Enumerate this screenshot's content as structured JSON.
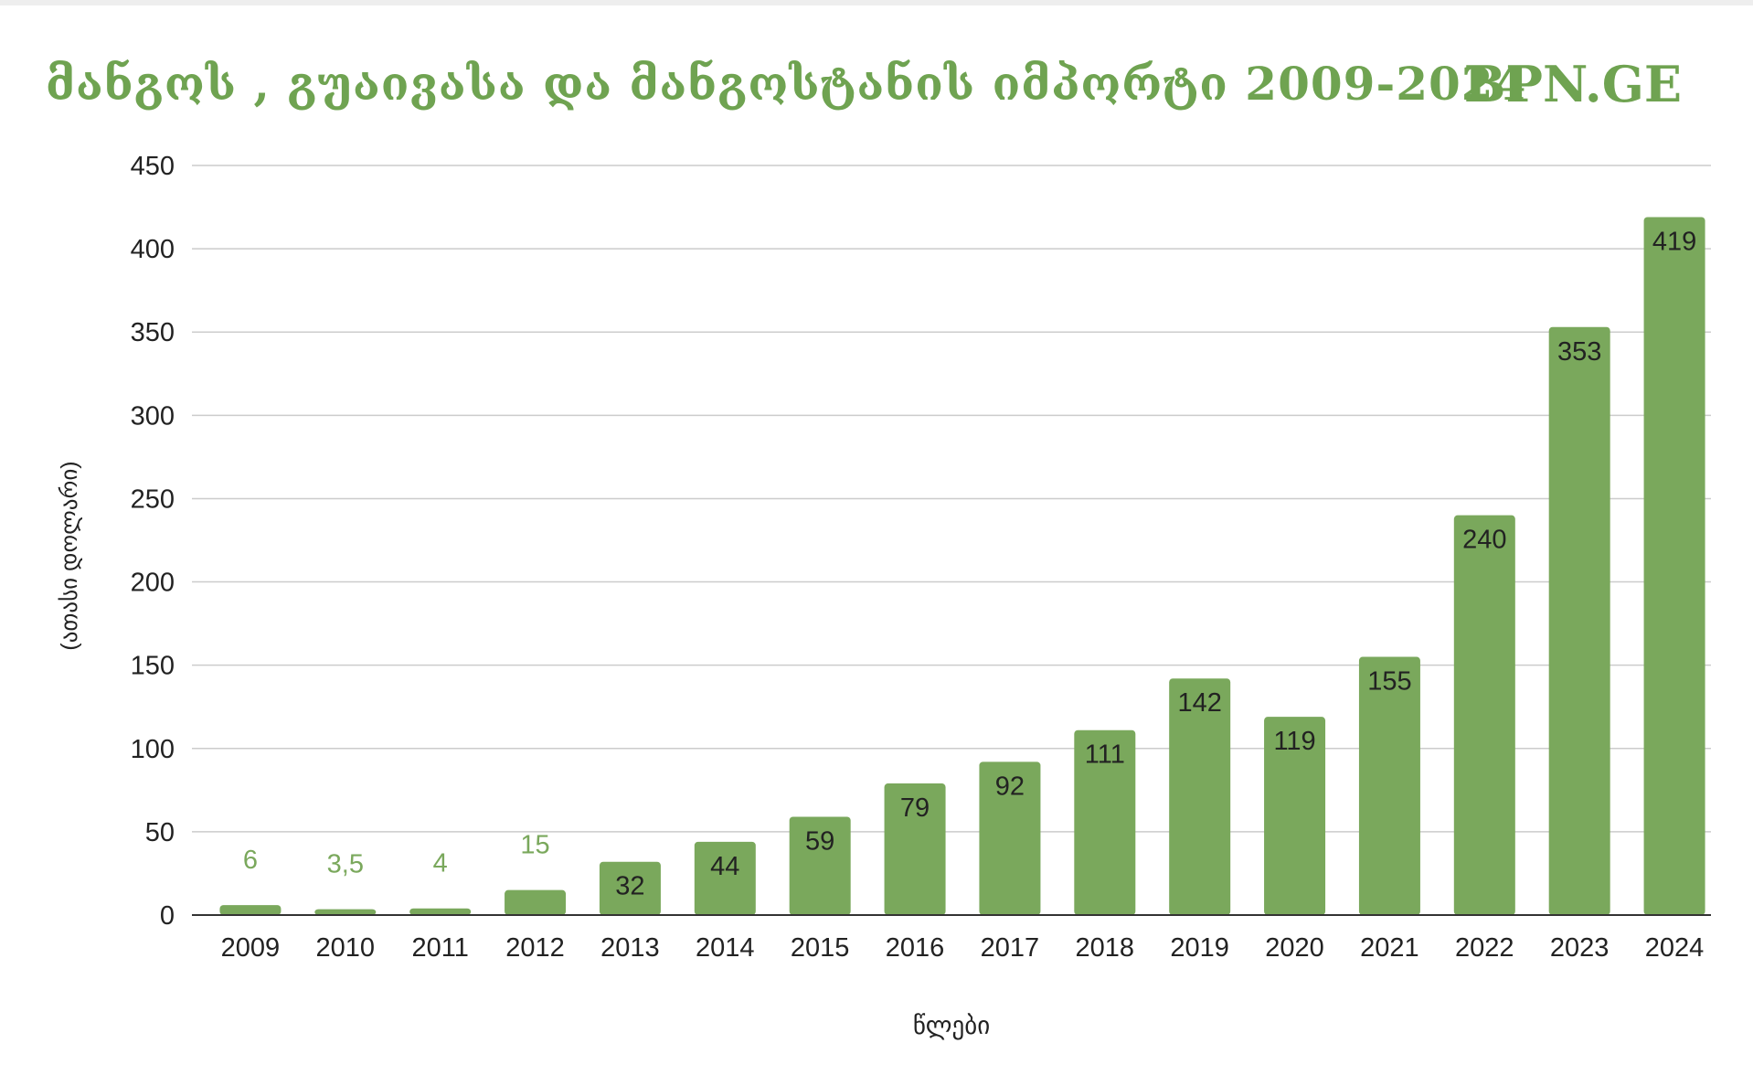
{
  "title": "მანგოს , გუაივასა და მანგოსტანის იმპორტი 2009-2024",
  "brand": "BPN.GE",
  "colors": {
    "bar": "#7aa85c",
    "title": "#6fa351",
    "grid": "#cccccc",
    "axis": "#333333",
    "text": "#222222",
    "outside_label": "#7aa85c"
  },
  "chart_data": {
    "type": "bar",
    "title": "მანგოს , გუაივასა და მანგოსტანის იმპორტი 2009-2024",
    "xlabel": "წლები",
    "ylabel": "(ათასი დოლარი)",
    "categories": [
      "2009",
      "2010",
      "2011",
      "2012",
      "2013",
      "2014",
      "2015",
      "2016",
      "2017",
      "2018",
      "2019",
      "2020",
      "2021",
      "2022",
      "2023",
      "2024"
    ],
    "values": [
      6,
      3.5,
      4,
      15,
      32,
      44,
      59,
      79,
      92,
      111,
      142,
      119,
      155,
      240,
      353,
      419
    ],
    "data_labels": [
      "6",
      "3,5",
      "4",
      "15",
      "32",
      "44",
      "59",
      "79",
      "92",
      "111",
      "142",
      "119",
      "155",
      "240",
      "353",
      "419"
    ],
    "ylim": [
      0,
      450
    ],
    "yticks": [
      "0",
      "50",
      "100",
      "150",
      "200",
      "250",
      "300",
      "350",
      "400",
      "450"
    ],
    "grid": true,
    "legend": "none"
  }
}
